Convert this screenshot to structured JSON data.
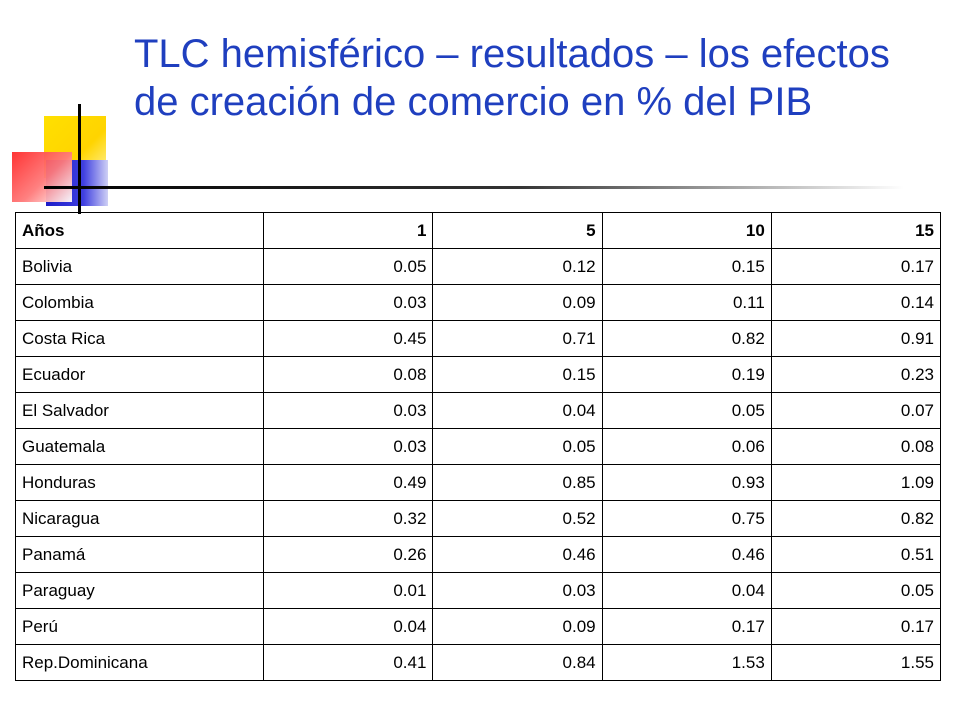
{
  "title": "TLC hemisférico – resultados – los efectos de creación de comercio en % del PIB",
  "colors": {
    "title": "#1f3fbf",
    "accent_yellow": "#ffd400",
    "accent_blue": "#1c1cc8",
    "accent_red": "#ff2a2a"
  },
  "table": {
    "headers": [
      "Años",
      "1",
      "5",
      "10",
      "15"
    ],
    "rows": [
      [
        "Bolivia",
        "0.05",
        "0.12",
        "0.15",
        "0.17"
      ],
      [
        "Colombia",
        "0.03",
        "0.09",
        "0.11",
        "0.14"
      ],
      [
        "Costa Rica",
        "0.45",
        "0.71",
        "0.82",
        "0.91"
      ],
      [
        "Ecuador",
        "0.08",
        "0.15",
        "0.19",
        "0.23"
      ],
      [
        "El Salvador",
        "0.03",
        "0.04",
        "0.05",
        "0.07"
      ],
      [
        "Guatemala",
        "0.03",
        "0.05",
        "0.06",
        "0.08"
      ],
      [
        "Honduras",
        "0.49",
        "0.85",
        "0.93",
        "1.09"
      ],
      [
        "Nicaragua",
        "0.32",
        "0.52",
        "0.75",
        "0.82"
      ],
      [
        "Panamá",
        "0.26",
        "0.46",
        "0.46",
        "0.51"
      ],
      [
        "Paraguay",
        "0.01",
        "0.03",
        "0.04",
        "0.05"
      ],
      [
        "Perú",
        "0.04",
        "0.09",
        "0.17",
        "0.17"
      ],
      [
        "Rep.Dominicana",
        "0.41",
        "0.84",
        "1.53",
        "1.55"
      ]
    ]
  }
}
